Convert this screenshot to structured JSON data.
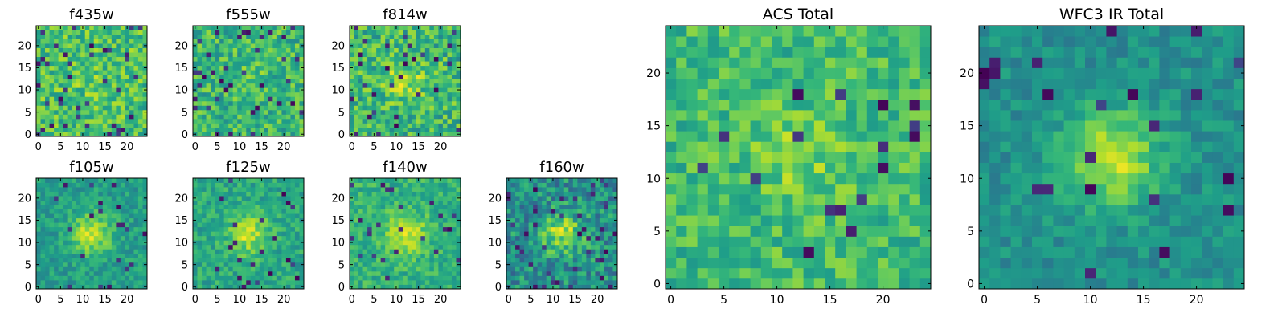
{
  "colormap": "viridis",
  "colors": {
    "viridis": [
      "#440154",
      "#482878",
      "#3e4989",
      "#31688e",
      "#26828e",
      "#1f9e89",
      "#35b779",
      "#6ece58",
      "#b5de2b",
      "#fde725"
    ],
    "axis": "#000000",
    "background": "#ffffff"
  },
  "chart_data": [
    {
      "type": "heatmap",
      "title": "f435w",
      "grid_size": 25,
      "xlim": [
        0,
        24
      ],
      "ylim": [
        0,
        24
      ],
      "xticks": [
        0,
        5,
        10,
        15,
        20
      ],
      "yticks": [
        0,
        5,
        10,
        15,
        20
      ],
      "tick_labels": [
        "0",
        "5",
        "10",
        "15",
        "20"
      ],
      "noise": 0.19,
      "source_strength": 0.05,
      "base_level": 0.7,
      "dark_pixel_fraction": 0.06,
      "seed": 11
    },
    {
      "type": "heatmap",
      "title": "f555w",
      "grid_size": 25,
      "xlim": [
        0,
        24
      ],
      "ylim": [
        0,
        24
      ],
      "xticks": [
        0,
        5,
        10,
        15,
        20
      ],
      "yticks": [
        0,
        5,
        10,
        15,
        20
      ],
      "tick_labels": [
        "0",
        "5",
        "10",
        "15",
        "20"
      ],
      "noise": 0.19,
      "source_strength": 0.05,
      "base_level": 0.66,
      "dark_pixel_fraction": 0.05,
      "seed": 23
    },
    {
      "type": "heatmap",
      "title": "f814w",
      "grid_size": 25,
      "xlim": [
        0,
        24
      ],
      "ylim": [
        0,
        24
      ],
      "xticks": [
        0,
        5,
        10,
        15,
        20
      ],
      "yticks": [
        0,
        5,
        10,
        15,
        20
      ],
      "tick_labels": [
        "0",
        "5",
        "10",
        "15",
        "20"
      ],
      "noise": 0.2,
      "source_strength": 0.2,
      "base_level": 0.66,
      "dark_pixel_fraction": 0.06,
      "seed": 37
    },
    {
      "type": "heatmap",
      "title": "f105w",
      "grid_size": 25,
      "xlim": [
        0,
        24
      ],
      "ylim": [
        0,
        24
      ],
      "xticks": [
        0,
        5,
        10,
        15,
        20
      ],
      "yticks": [
        0,
        5,
        10,
        15,
        20
      ],
      "tick_labels": [
        "0",
        "5",
        "10",
        "15",
        "20"
      ],
      "noise": 0.12,
      "source_strength": 0.35,
      "base_level": 0.56,
      "dark_pixel_fraction": 0.04,
      "seed": 41
    },
    {
      "type": "heatmap",
      "title": "f125w",
      "grid_size": 25,
      "xlim": [
        0,
        24
      ],
      "ylim": [
        0,
        24
      ],
      "xticks": [
        0,
        5,
        10,
        15,
        20
      ],
      "yticks": [
        0,
        5,
        10,
        15,
        20
      ],
      "tick_labels": [
        "0",
        "5",
        "10",
        "15",
        "20"
      ],
      "noise": 0.13,
      "source_strength": 0.3,
      "base_level": 0.6,
      "dark_pixel_fraction": 0.04,
      "seed": 53
    },
    {
      "type": "heatmap",
      "title": "f140w",
      "grid_size": 25,
      "xlim": [
        0,
        24
      ],
      "ylim": [
        0,
        24
      ],
      "xticks": [
        0,
        5,
        10,
        15,
        20
      ],
      "yticks": [
        0,
        5,
        10,
        15,
        20
      ],
      "tick_labels": [
        "0",
        "5",
        "10",
        "15",
        "20"
      ],
      "noise": 0.13,
      "source_strength": 0.3,
      "base_level": 0.64,
      "dark_pixel_fraction": 0.04,
      "seed": 67
    },
    {
      "type": "heatmap",
      "title": "f160w",
      "grid_size": 25,
      "xlim": [
        0,
        24
      ],
      "ylim": [
        0,
        24
      ],
      "xticks": [
        0,
        5,
        10,
        15,
        20
      ],
      "yticks": [
        0,
        5,
        10,
        15,
        20
      ],
      "tick_labels": [
        "0",
        "5",
        "10",
        "15",
        "20"
      ],
      "noise": 0.2,
      "source_strength": 0.35,
      "base_level": 0.5,
      "dark_pixel_fraction": 0.06,
      "seed": 79
    },
    {
      "type": "heatmap",
      "title": "ACS Total",
      "grid_size": 25,
      "xlim": [
        0,
        24
      ],
      "ylim": [
        0,
        24
      ],
      "xticks": [
        0,
        5,
        10,
        15,
        20
      ],
      "yticks": [
        0,
        5,
        10,
        15,
        20
      ],
      "tick_labels": [
        "0",
        "5",
        "10",
        "15",
        "20"
      ],
      "noise": 0.15,
      "source_strength": 0.12,
      "base_level": 0.68,
      "dark_pixel_fraction": 0.035,
      "seed": 97
    },
    {
      "type": "heatmap",
      "title": "WFC3 IR Total",
      "grid_size": 25,
      "xlim": [
        0,
        24
      ],
      "ylim": [
        0,
        24
      ],
      "xticks": [
        0,
        5,
        10,
        15,
        20
      ],
      "yticks": [
        0,
        5,
        10,
        15,
        20
      ],
      "tick_labels": [
        "0",
        "5",
        "10",
        "15",
        "20"
      ],
      "noise": 0.1,
      "source_strength": 0.42,
      "base_level": 0.5,
      "dark_pixel_fraction": 0.03,
      "seed": 101
    }
  ]
}
